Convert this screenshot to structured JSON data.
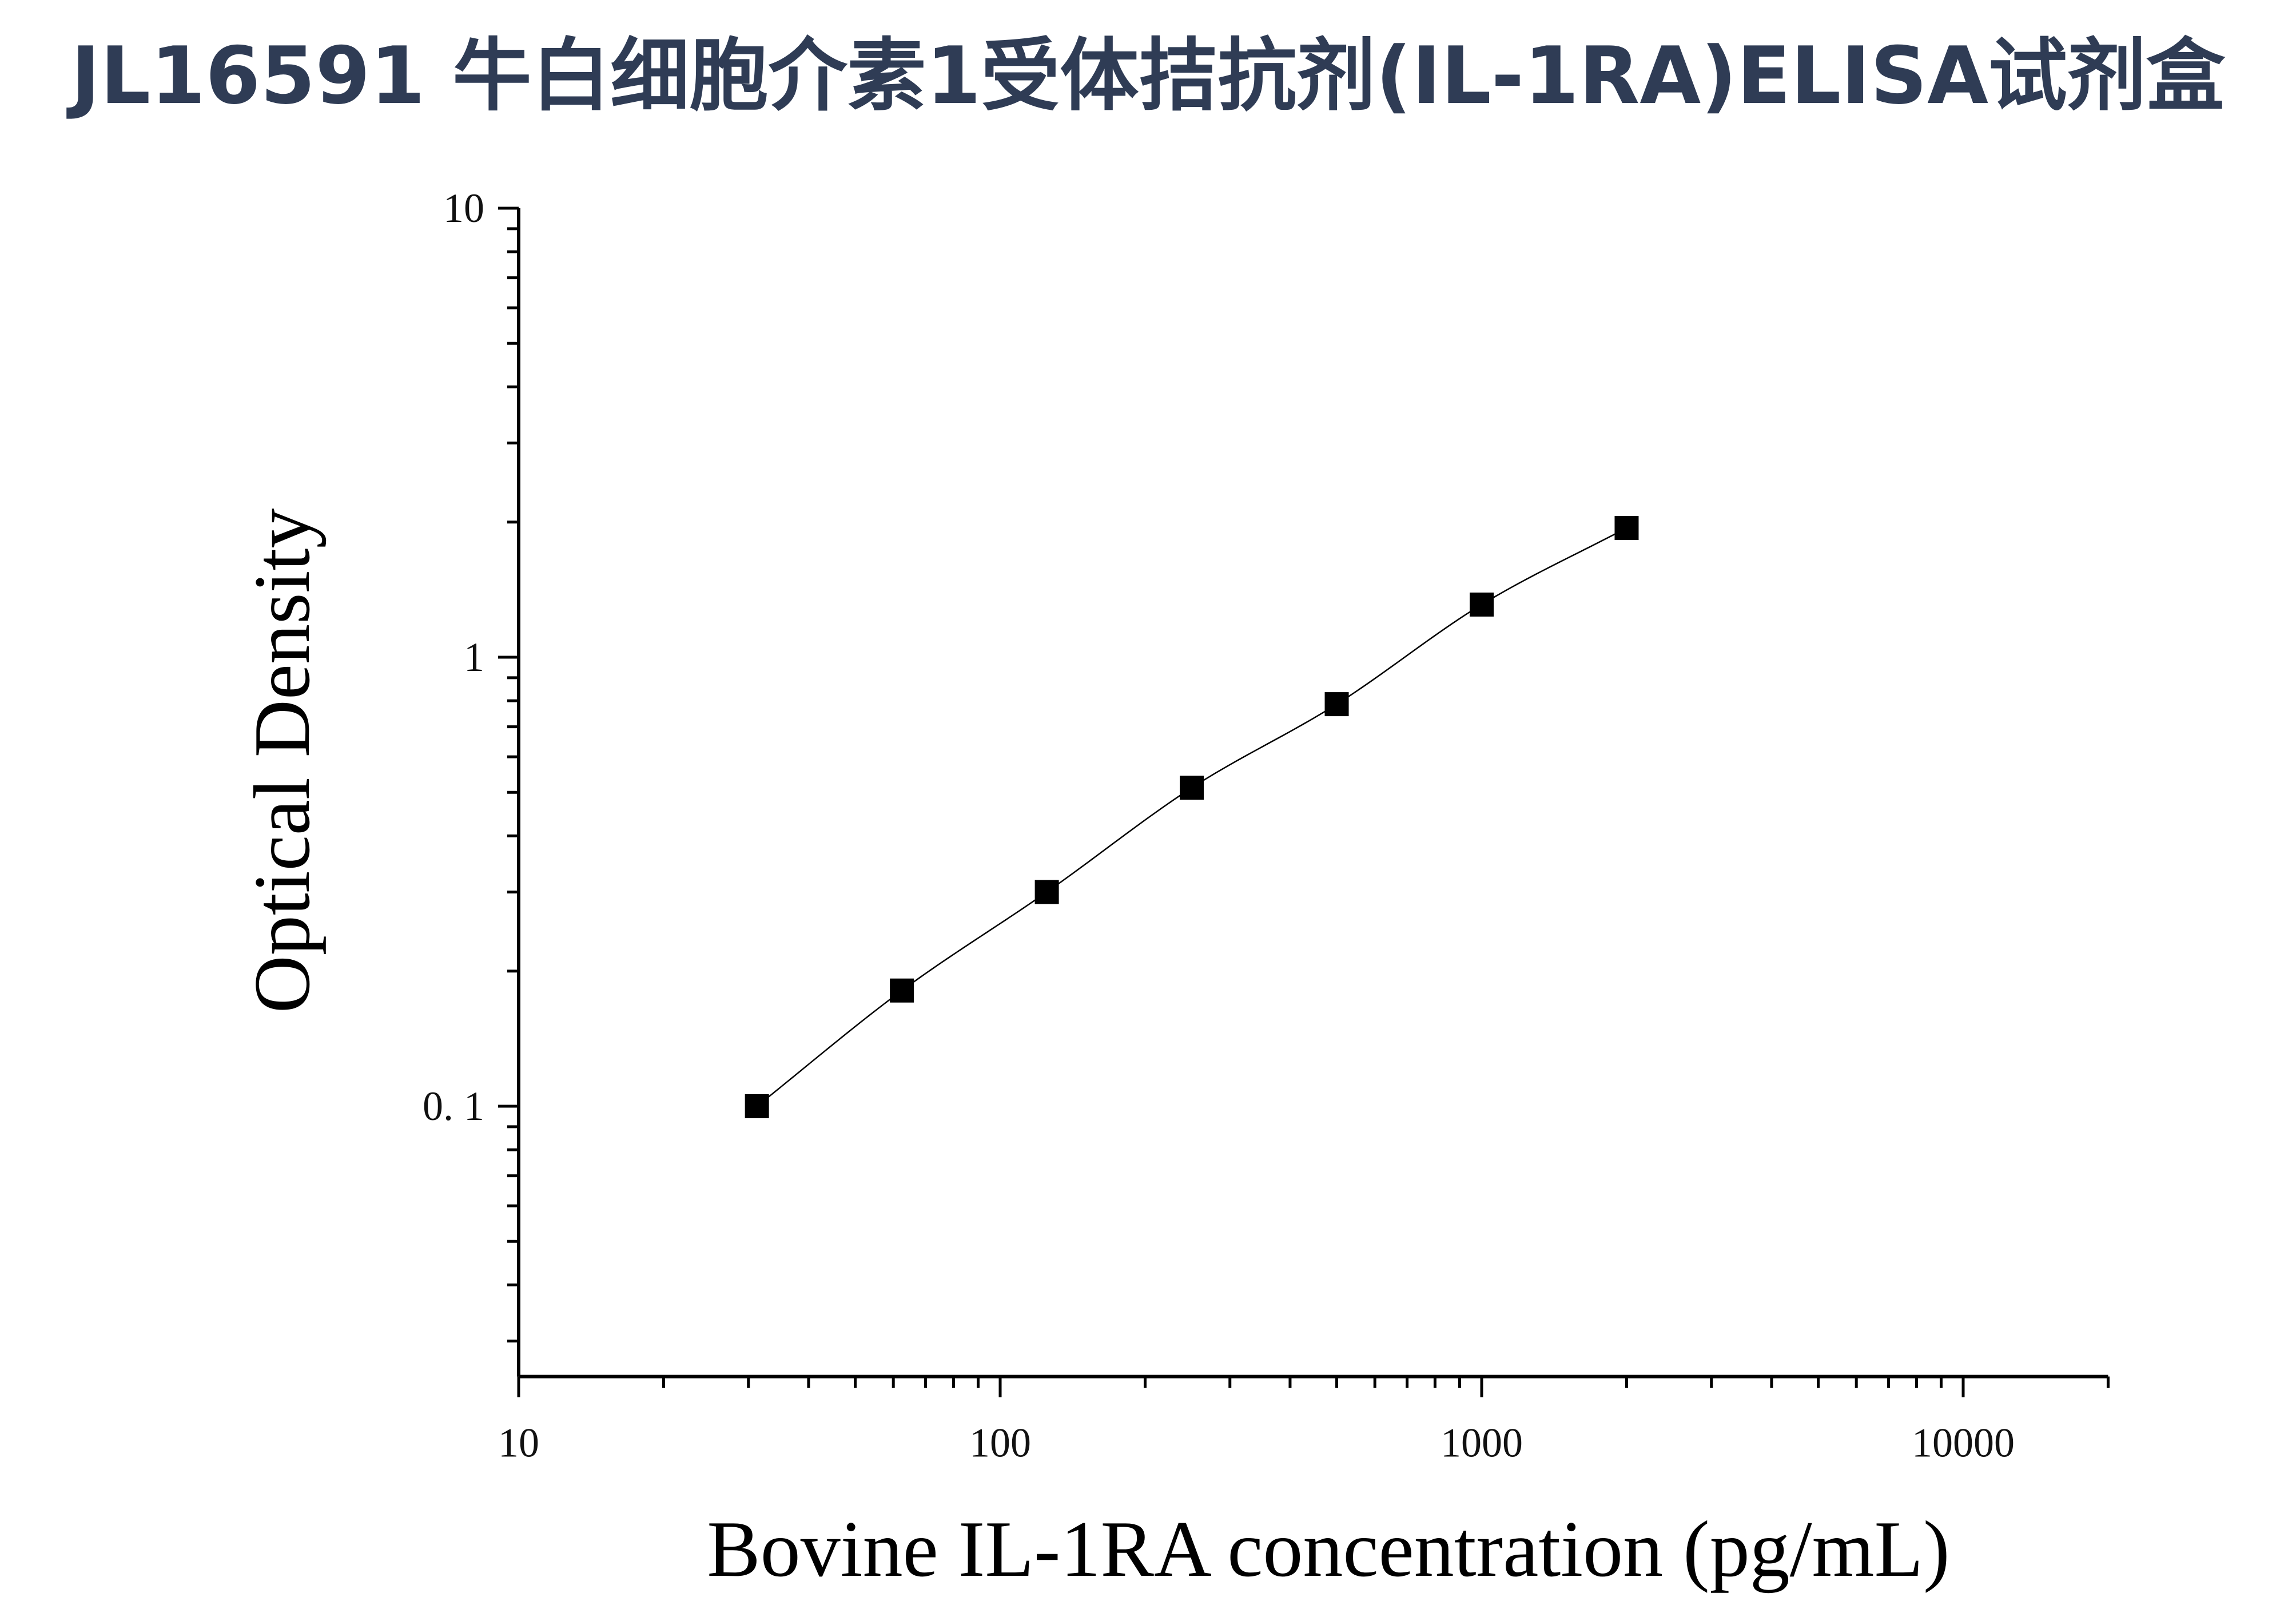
{
  "header": {
    "title": "JL16591 牛白细胞介素1受体拮抗剂(IL-1RA)ELISA试剂盒"
  },
  "chart_data": {
    "type": "scatter",
    "title": "",
    "xlabel": "Bovine IL-1RA concentration (pg/mL)",
    "ylabel": "Optical Density",
    "x_scale": "log",
    "y_scale": "log",
    "xlim": [
      10,
      20000
    ],
    "ylim": [
      0.025,
      10
    ],
    "x_ticks": [
      10,
      100,
      1000,
      10000
    ],
    "x_tick_labels": [
      "10",
      "100",
      "1000",
      "10000"
    ],
    "y_ticks": [
      0.1,
      1,
      10
    ],
    "y_tick_labels": [
      "0. 1",
      "1",
      "10"
    ],
    "grid": false,
    "legend": "none",
    "marker": "square",
    "marker_color": "#000000",
    "line_color": "#000000",
    "series": [
      {
        "x": [
          31.25,
          62.5,
          125,
          250,
          500,
          1000,
          2000
        ],
        "y": [
          0.1,
          0.181,
          0.3,
          0.512,
          0.786,
          1.31,
          1.94
        ]
      }
    ]
  }
}
